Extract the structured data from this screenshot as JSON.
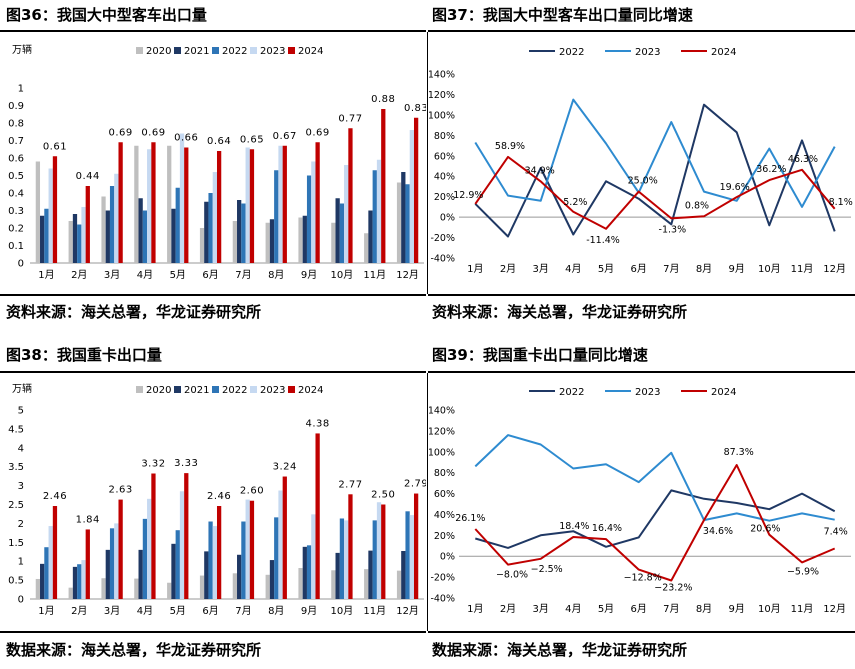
{
  "colors": {
    "y2020": "#bfbfbf",
    "y2021": "#1f3864",
    "y2022": "#2e75b6",
    "y2023": "#c6d9f1",
    "y2024": "#c00000",
    "l2022": "#1f3864",
    "l2023": "#2e8bd0",
    "l2024": "#c00000"
  },
  "panels": [
    {
      "title": "图36：我国大中型客车出口量",
      "source": "资料来源：海关总署，华龙证券研究所"
    },
    {
      "title": "图37：我国大中型客车出口量同比增速",
      "source": "资料来源：海关总署，华龙证券研究所"
    },
    {
      "title": "图38：我国重卡出口量",
      "source": "数据来源：海关总署，华龙证券研究所"
    },
    {
      "title": "图39：我国重卡出口量同比增速",
      "source": "数据来源：海关总署，华龙证券研究所"
    }
  ],
  "chart_data": [
    {
      "type": "bar",
      "unit": "万辆",
      "categories": [
        "1月",
        "2月",
        "3月",
        "4月",
        "5月",
        "6月",
        "7月",
        "8月",
        "9月",
        "10月",
        "11月",
        "12月"
      ],
      "series": [
        {
          "name": "2020",
          "values": [
            0.58,
            0.24,
            0.38,
            0.67,
            0.67,
            0.2,
            0.24,
            0.23,
            0.26,
            0.23,
            0.17,
            0.46
          ]
        },
        {
          "name": "2021",
          "values": [
            0.27,
            0.28,
            0.3,
            0.37,
            0.31,
            0.35,
            0.36,
            0.25,
            0.27,
            0.37,
            0.3,
            0.52
          ]
        },
        {
          "name": "2022",
          "values": [
            0.31,
            0.22,
            0.44,
            0.3,
            0.43,
            0.4,
            0.34,
            0.53,
            0.5,
            0.34,
            0.53,
            0.45
          ]
        },
        {
          "name": "2023",
          "values": [
            0.54,
            0.32,
            0.51,
            0.65,
            0.74,
            0.52,
            0.66,
            0.67,
            0.58,
            0.56,
            0.59,
            0.76
          ]
        },
        {
          "name": "2024",
          "values": [
            0.61,
            0.44,
            0.69,
            0.69,
            0.66,
            0.64,
            0.65,
            0.67,
            0.69,
            0.77,
            0.88,
            0.83
          ]
        }
      ],
      "data_labels": [
        "0.61",
        "0.44",
        "0.69",
        "0.69",
        "0.66",
        "0.64",
        "0.65",
        "0.67",
        "0.69",
        "0.77",
        "0.88",
        "0.83"
      ],
      "ylim": [
        0,
        1
      ],
      "yticks": [
        "0",
        "0.1",
        "0.2",
        "0.3",
        "0.4",
        "0.5",
        "0.6",
        "0.7",
        "0.8",
        "0.9",
        "1"
      ],
      "legend": "top"
    },
    {
      "type": "line",
      "categories": [
        "1月",
        "2月",
        "3月",
        "4月",
        "5月",
        "6月",
        "7月",
        "8月",
        "9月",
        "10月",
        "11月",
        "12月"
      ],
      "series": [
        {
          "name": "2022",
          "values": [
            13,
            -19,
            48,
            -17,
            35,
            18,
            -7,
            110,
            83,
            -8,
            75,
            -14
          ]
        },
        {
          "name": "2023",
          "values": [
            73,
            21,
            16,
            115,
            72,
            24,
            93,
            25,
            16,
            67,
            10,
            69
          ]
        },
        {
          "name": "2024",
          "values": [
            12.9,
            58.9,
            34.9,
            5.2,
            -11.4,
            25.0,
            -1.3,
            0.8,
            19.6,
            36.2,
            46.3,
            8.1
          ]
        }
      ],
      "data_labels": [
        "12.9%",
        "58.9%",
        "34.9%",
        "5.2%",
        "-11.4%",
        "25.0%",
        "-1.3%",
        "0.8%",
        "19.6%",
        "36.2%",
        "46.3%",
        "8.1%"
      ],
      "ylim": [
        -40,
        140
      ],
      "yticks": [
        "-40%",
        "-20%",
        "0%",
        "20%",
        "40%",
        "60%",
        "80%",
        "100%",
        "120%",
        "140%"
      ],
      "legend": "top"
    },
    {
      "type": "bar",
      "unit": "万辆",
      "categories": [
        "1月",
        "2月",
        "3月",
        "4月",
        "5月",
        "6月",
        "7月",
        "8月",
        "9月",
        "10月",
        "11月",
        "12月"
      ],
      "series": [
        {
          "name": "2020",
          "values": [
            0.53,
            0.3,
            0.55,
            0.54,
            0.43,
            0.62,
            0.68,
            0.64,
            0.82,
            0.76,
            0.79,
            0.75
          ]
        },
        {
          "name": "2021",
          "values": [
            0.93,
            0.85,
            1.3,
            1.3,
            1.46,
            1.26,
            1.17,
            1.03,
            1.38,
            1.22,
            1.28,
            1.27
          ]
        },
        {
          "name": "2022",
          "values": [
            1.37,
            0.92,
            1.87,
            2.12,
            1.82,
            2.05,
            2.05,
            2.16,
            1.42,
            2.13,
            2.08,
            2.32
          ]
        },
        {
          "name": "2023",
          "values": [
            1.93,
            1.03,
            2.0,
            2.65,
            2.85,
            1.93,
            2.63,
            2.87,
            2.24,
            2.08,
            2.56,
            2.22
          ]
        },
        {
          "name": "2024",
          "values": [
            2.46,
            1.84,
            2.63,
            3.32,
            3.33,
            2.46,
            2.6,
            3.24,
            4.38,
            2.77,
            2.5,
            2.79
          ]
        }
      ],
      "data_labels": [
        "2.46",
        "1.84",
        "2.63",
        "3.32",
        "3.33",
        "2.46",
        "2.60",
        "3.24",
        "4.38",
        "2.77",
        "2.50",
        "2.79"
      ],
      "ylim": [
        0,
        5
      ],
      "yticks": [
        "0",
        "0.5",
        "1",
        "1.5",
        "2",
        "2.5",
        "3",
        "3.5",
        "4",
        "4.5",
        "5"
      ],
      "legend": "top"
    },
    {
      "type": "line",
      "categories": [
        "1月",
        "2月",
        "3月",
        "4月",
        "5月",
        "6月",
        "7月",
        "8月",
        "9月",
        "10月",
        "11月",
        "12月"
      ],
      "series": [
        {
          "name": "2022",
          "values": [
            17,
            8,
            20,
            24,
            9,
            18,
            63,
            55,
            51,
            45,
            60,
            43
          ]
        },
        {
          "name": "2023",
          "values": [
            86,
            116,
            107,
            84,
            88,
            71,
            99,
            34.6,
            41,
            34,
            41,
            35
          ]
        },
        {
          "name": "2024",
          "values": [
            26.1,
            -8.0,
            -2.5,
            18.4,
            16.4,
            -12.8,
            -23.2,
            34.6,
            87.3,
            20.6,
            -5.9,
            7.4
          ]
        }
      ],
      "data_labels": [
        "26.1%",
        "−8.0%",
        "−2.5%",
        "18.4%",
        "16.4%",
        "−12.8%",
        "−23.2%",
        "34.6%",
        "87.3%",
        "20.6%",
        "−5.9%",
        "7.4%"
      ],
      "ylim": [
        -40,
        140
      ],
      "yticks": [
        "-40%",
        "-20%",
        "0%",
        "20%",
        "40%",
        "60%",
        "80%",
        "100%",
        "120%",
        "140%"
      ],
      "legend": "top"
    }
  ]
}
